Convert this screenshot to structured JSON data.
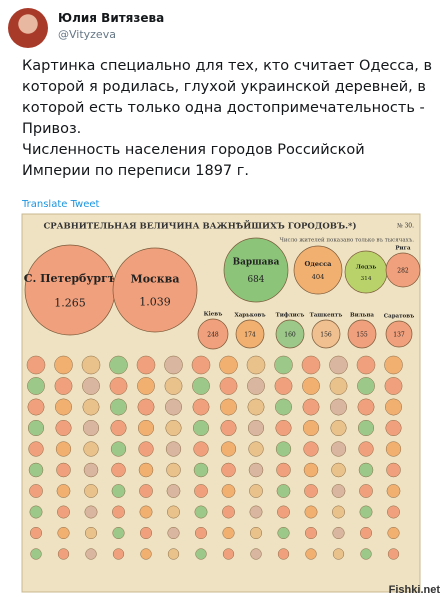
{
  "header": {
    "name": "Юлия Витязева",
    "handle": "@Vityzeva"
  },
  "tweet": {
    "lines": [
      "Картинка специально для тех, кто считает Одесса, в",
      "которой я родилась, глухой украинской деревней, в",
      "которой есть только одна достопримечательность -",
      "Привоз.",
      "Численность населения городов Российской",
      "Империи по переписи 1897 г."
    ]
  },
  "translate": "Translate Tweet",
  "image": {
    "title": "СРАВНИТЕЛЬНАЯ ВЕЛИЧИНА ВАЖНѢЙШИХЪ ГОРОДОВЪ.*)",
    "number": "№ 30.",
    "note": "Число жителей показано только въ тысячахъ.",
    "cities": [
      {
        "name": "С. Петербургъ",
        "value": "1.265",
        "color": "#f0a07c"
      },
      {
        "name": "Москва",
        "value": "1.039",
        "color": "#f0a07c"
      },
      {
        "name": "Варшава",
        "value": "684",
        "color": "#8cc47a"
      },
      {
        "name": "Одесса",
        "value": "404",
        "color": "#f2b070"
      },
      {
        "name": "Лодзь",
        "value": "314",
        "color": "#b9d36a"
      },
      {
        "name": "Рига",
        "value": "282",
        "color": "#f0a07c"
      },
      {
        "name": "Кiевъ",
        "value": "248",
        "color": "#f0a07c"
      },
      {
        "name": "Харьковъ",
        "value": "174",
        "color": "#f2b070"
      },
      {
        "name": "Тифлисъ",
        "value": "160",
        "color": "#9cc98a"
      },
      {
        "name": "Ташкентъ",
        "value": "156",
        "color": "#f0c090"
      },
      {
        "name": "Вильна",
        "value": "155",
        "color": "#f0a07c"
      },
      {
        "name": "Саратовъ",
        "value": "137",
        "color": "#f0a07c"
      }
    ]
  },
  "watermark": "Fishki.net"
}
